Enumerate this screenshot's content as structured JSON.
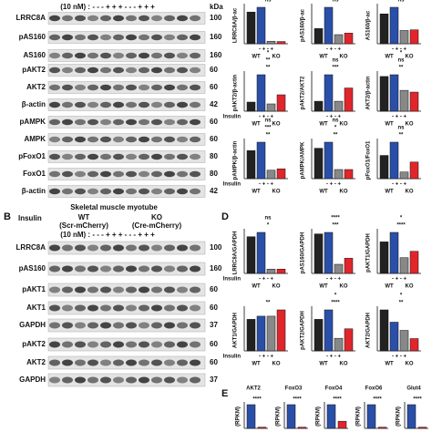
{
  "panel_a": {
    "header": "(10 nM) :  -   -   -   +   +   +   -   -   -   +   +   +",
    "kda": "kDa",
    "rows": [
      {
        "label": "LRRC8A",
        "kda": "100"
      },
      {
        "label": "pAS160",
        "kda": "160"
      },
      {
        "label": "AS160",
        "kda": "160"
      },
      {
        "label": "pAKT2",
        "kda": "60"
      },
      {
        "label": "AKT2",
        "kda": "60"
      },
      {
        "label": "β-actin",
        "kda": "42"
      },
      {
        "label": "pAMPK",
        "kda": "60"
      },
      {
        "label": "AMPK",
        "kda": "60"
      },
      {
        "label": "pFoxO1",
        "kda": "80"
      },
      {
        "label": "FoxO1",
        "kda": "80"
      },
      {
        "label": "β-actin",
        "kda": "42"
      }
    ]
  },
  "panel_b": {
    "letter": "B",
    "title": "Skeletal muscle myotube",
    "insulin": "Insulin",
    "wt": "WT",
    "ko": "KO",
    "wt_sub": "(Scr-mCherry)",
    "ko_sub": "(Cre-mCherry)",
    "header": "(10 nM) :  -   -   -   +   +   +   -   -   -   +   +   +",
    "rows": [
      {
        "label": "LRRC8A",
        "kda": "100"
      },
      {
        "label": "pAS160",
        "kda": "160"
      },
      {
        "label": "pAKT1",
        "kda": "60"
      },
      {
        "label": "AKT1",
        "kda": "60"
      },
      {
        "label": "GAPDH",
        "kda": "37"
      },
      {
        "label": "pAKT2",
        "kda": "60"
      },
      {
        "label": "AKT2",
        "kda": "60"
      },
      {
        "label": "GAPDH",
        "kda": "37"
      }
    ]
  },
  "bar_labels": {
    "insulin": "Insulin",
    "signs": "-  +  -  +",
    "wt": "WT",
    "ko": "KO"
  },
  "panel_c": {
    "charts": [
      {
        "ylabel": "LRRC8A/β-ac",
        "values": [
          1,
          1.15,
          0.08,
          0.07
        ],
        "sig": [
          "ns"
        ]
      },
      {
        "ylabel": "pAS160/β-ac",
        "values": [
          0.5,
          1.2,
          0.3,
          0.35
        ],
        "sig": [
          "ns"
        ]
      },
      {
        "ylabel": "AS160/β-ac",
        "values": [
          0.9,
          1.1,
          0.4,
          0.42
        ],
        "sig": [
          "ns"
        ]
      },
      {
        "ylabel": "pAKT2/β-actin",
        "values": [
          0.25,
          1.0,
          0.2,
          0.45
        ],
        "sig": [
          "**",
          "**",
          "*"
        ]
      },
      {
        "ylabel": "pAKT2/AKT2",
        "values": [
          0.3,
          1.1,
          0.3,
          0.7
        ],
        "sig": [
          "***",
          "ns"
        ]
      },
      {
        "ylabel": "AKT2/β-actin",
        "values": [
          1,
          1.05,
          0.6,
          0.55
        ],
        "sig": [
          "**",
          "ns",
          "*"
        ]
      },
      {
        "ylabel": "pAMPK/β-actin",
        "values": [
          1,
          1.3,
          0.3,
          0.35
        ],
        "sig": [
          "**",
          "***",
          "ns"
        ]
      },
      {
        "ylabel": "pAMPK/AMPK",
        "values": [
          1,
          1.2,
          0.3,
          0.3
        ],
        "sig": [
          "**",
          "*",
          "ns"
        ]
      },
      {
        "ylabel": "pFoxO1/FoxO1",
        "values": [
          0.7,
          1.1,
          0.2,
          0.5
        ],
        "sig": [
          "**",
          "ns"
        ]
      }
    ]
  },
  "panel_d": {
    "letter": "D",
    "charts": [
      {
        "ylabel": "LRRC8A/GAPDH",
        "values": [
          1.7,
          1.9,
          0.2,
          0.2
        ],
        "sig": [
          "*",
          "ns"
        ]
      },
      {
        "ylabel": "pAS160/GAPDH",
        "values": [
          1.3,
          1.35,
          0.3,
          0.5
        ],
        "sig": [
          "***",
          "****"
        ]
      },
      {
        "ylabel": "pAKT1/GAPDH",
        "values": [
          1.0,
          1.3,
          0.5,
          0.7
        ],
        "sig": [
          "****",
          "*"
        ]
      },
      {
        "ylabel": "AKT1/GAPDH",
        "values": [
          1.0,
          1.1,
          1.1,
          1.3
        ],
        "sig": [
          "**"
        ]
      },
      {
        "ylabel": "pAKT2/GAPDH",
        "values": [
          1.0,
          1.3,
          0.4,
          0.7
        ],
        "sig": [
          "****",
          "*"
        ]
      },
      {
        "ylabel": "AKT2/GAPDH",
        "values": [
          1.0,
          0.7,
          0.5,
          0.3
        ],
        "sig": [
          "**",
          "*"
        ]
      }
    ]
  },
  "panel_e": {
    "letter": "E",
    "ylabel": "(RPKM)",
    "charts": [
      {
        "title": "AKT2",
        "values": [
          1.0,
          0.05
        ],
        "sig": "****"
      },
      {
        "title": "FoxO3",
        "values": [
          1.0,
          0.05
        ],
        "sig": "****"
      },
      {
        "title": "FoxO4",
        "values": [
          1.0,
          0.3
        ],
        "sig": "****"
      },
      {
        "title": "FoxO6",
        "values": [
          1.0,
          0.05
        ],
        "sig": "****"
      },
      {
        "title": "Glut4",
        "values": [
          1.0,
          0.05
        ],
        "sig": "****"
      }
    ]
  }
}
